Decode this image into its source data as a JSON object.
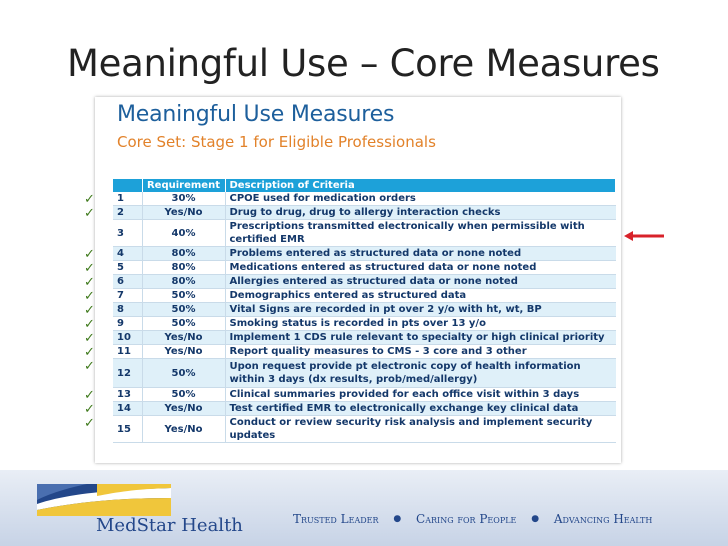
{
  "slide": {
    "title": "Meaningful Use – Core Measures"
  },
  "card": {
    "heading": "Meaningful Use Measures",
    "subheading": "Core Set: Stage 1 for Eligible Professionals"
  },
  "table": {
    "headers": [
      "",
      "Requirement",
      "Description of Criteria"
    ],
    "rows": [
      {
        "num": "1",
        "req": "30%",
        "desc": "CPOE used for medication orders",
        "check": true
      },
      {
        "num": "2",
        "req": "Yes/No",
        "desc": "Drug to drug, drug to allergy interaction checks",
        "check": true
      },
      {
        "num": "3",
        "req": "40%",
        "desc": "Prescriptions transmitted electronically when permissible with certified EMR",
        "check": false
      },
      {
        "num": "4",
        "req": "80%",
        "desc": "Problems entered as structured data or none noted",
        "check": true
      },
      {
        "num": "5",
        "req": "80%",
        "desc": "Medications entered as structured data or none noted",
        "check": true
      },
      {
        "num": "6",
        "req": "80%",
        "desc": "Allergies entered as structured data or none noted",
        "check": true
      },
      {
        "num": "7",
        "req": "50%",
        "desc": "Demographics entered as structured data",
        "check": true
      },
      {
        "num": "8",
        "req": "50%",
        "desc": "Vital Signs are recorded in pt over 2 y/o with ht, wt,  BP",
        "check": true
      },
      {
        "num": "9",
        "req": "50%",
        "desc": "Smoking status is recorded in pts over 13 y/o",
        "check": true
      },
      {
        "num": "10",
        "req": "Yes/No",
        "desc": "Implement 1 CDS rule relevant to specialty or high clinical priority",
        "check": true
      },
      {
        "num": "11",
        "req": "Yes/No",
        "desc": "Report quality measures to CMS - 3 core and 3 other",
        "check": true
      },
      {
        "num": "12",
        "req": "50%",
        "desc": "Upon request provide pt electronic copy of health information within 3 days (dx results, prob/med/allergy)",
        "check": true
      },
      {
        "num": "13",
        "req": "50%",
        "desc": "Clinical summaries provided for each office visit within 3 days",
        "check": true
      },
      {
        "num": "14",
        "req": "Yes/No",
        "desc": "Test certified EMR to electronically exchange key clinical data",
        "check": true
      },
      {
        "num": "15",
        "req": "Yes/No",
        "desc": "Conduct or review security risk analysis and implement security updates",
        "check": true
      }
    ]
  },
  "check_glyph": "✓",
  "colors": {
    "header_blue": "#1da1d9",
    "title_blue": "#1d5f9c",
    "subtitle_orange": "#e2822a",
    "arrow_red": "#d8222a",
    "check_green": "#3f7a1c"
  },
  "footer": {
    "brand": "MedStar Health",
    "tagline": [
      "Trusted Leader",
      "Caring for People",
      "Advancing Health"
    ]
  },
  "icons": {
    "logo": "medstar-logo",
    "arrow": "left-arrow-icon",
    "check": "check-icon"
  }
}
